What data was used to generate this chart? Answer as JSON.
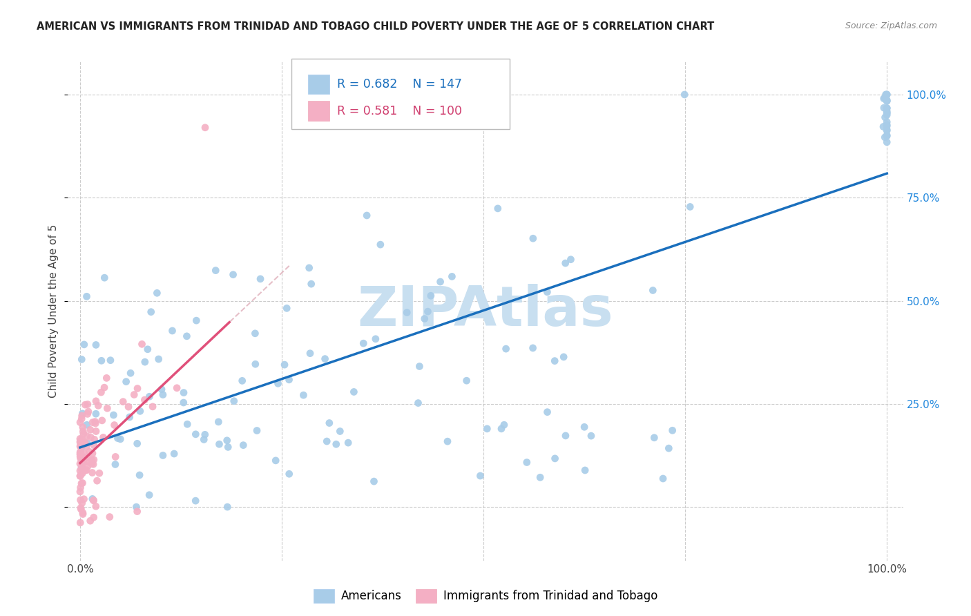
{
  "title": "AMERICAN VS IMMIGRANTS FROM TRINIDAD AND TOBAGO CHILD POVERTY UNDER THE AGE OF 5 CORRELATION CHART",
  "source": "Source: ZipAtlas.com",
  "ylabel": "Child Poverty Under the Age of 5",
  "legend_blue_R": "0.682",
  "legend_blue_N": "147",
  "legend_pink_R": "0.581",
  "legend_pink_N": "100",
  "blue_color": "#a8cce8",
  "pink_color": "#f4afc4",
  "trendline_blue": "#1a6fbd",
  "trendline_pink": "#e0507a",
  "trendline_dashed_color": "#e0b0bb",
  "watermark": "ZIPAtlas",
  "watermark_color": "#c8dff0",
  "grid_color": "#cccccc",
  "legend_text_color": "#1a6fbd",
  "legend_pink_text_color": "#d04070",
  "right_axis_color": "#2288dd",
  "seed": 42
}
